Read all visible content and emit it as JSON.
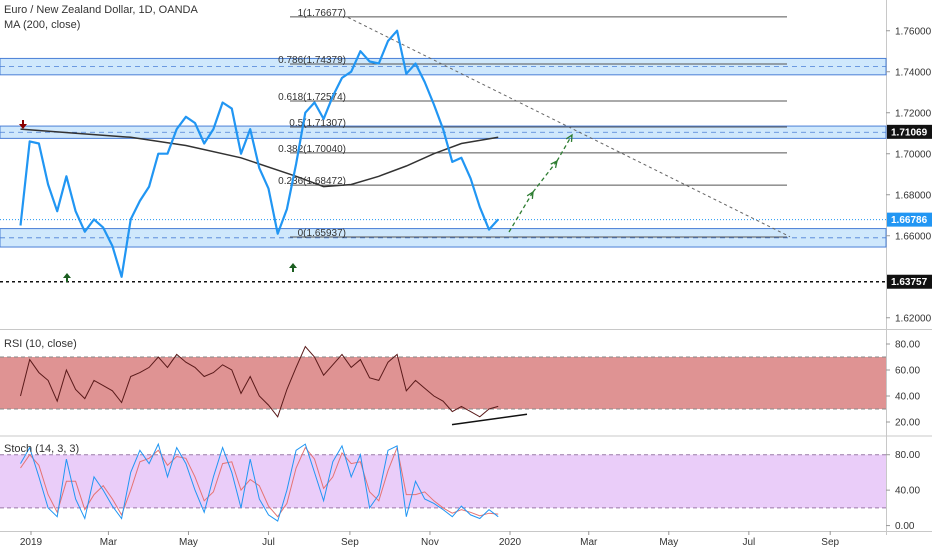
{
  "header": {
    "symbol": "Euro / New Zealand Dollar, 1D, OANDA",
    "ma_label": "MA (200, close)",
    "rsi_label": "RSI (10, close)",
    "stoch_label": "Stoch (14, 3, 3)"
  },
  "colors": {
    "price": "#2196f3",
    "ma": "#333333",
    "zone": "#bbdefb",
    "rsi_band": "#d98080",
    "stoch_band": "#e8c8f8",
    "up_arrow": "#1b5e20",
    "down_arrow": "#8b0000",
    "last_tag": "#2196f3",
    "support_tag": "#111111",
    "ma_tag": "#111111"
  },
  "chart_data": [
    {
      "type": "line",
      "panel": "price",
      "ylim": [
        1.615,
        1.775
      ],
      "yticks": [
        "1.76000",
        "1.74000",
        "1.72000",
        "1.70000",
        "1.68000",
        "1.66000",
        "1.62000"
      ],
      "ytick_values": [
        1.76,
        1.74,
        1.72,
        1.7,
        1.68,
        1.66,
        1.62
      ],
      "x_labels": [
        "2019",
        "Mar",
        "May",
        "Jul",
        "Sep",
        "Nov",
        "2020",
        "Mar",
        "May",
        "Jul",
        "Sep"
      ],
      "series": [
        {
          "x": [
            "2018-12-24",
            "2018-12-31",
            "2019-01-07",
            "2019-01-14",
            "2019-01-21",
            "2019-01-28",
            "2019-02-04",
            "2019-02-11",
            "2019-02-18",
            "2019-02-25",
            "2019-03-04",
            "2019-03-11",
            "2019-03-18",
            "2019-03-25",
            "2019-04-01",
            "2019-04-08",
            "2019-04-15",
            "2019-04-22",
            "2019-04-29",
            "2019-05-06",
            "2019-05-13",
            "2019-05-20",
            "2019-05-27",
            "2019-06-03",
            "2019-06-10",
            "2019-06-17",
            "2019-06-24",
            "2019-07-01",
            "2019-07-08",
            "2019-07-15",
            "2019-07-22",
            "2019-07-29",
            "2019-08-05",
            "2019-08-12",
            "2019-08-19",
            "2019-08-26",
            "2019-09-02",
            "2019-09-09",
            "2019-09-16",
            "2019-09-23",
            "2019-09-30",
            "2019-10-07",
            "2019-10-14",
            "2019-10-21",
            "2019-10-28",
            "2019-11-04",
            "2019-11-11",
            "2019-11-18",
            "2019-11-25",
            "2019-12-02",
            "2019-12-09",
            "2019-12-16",
            "2019-12-23"
          ],
          "values": [
            1.665,
            1.706,
            1.705,
            1.685,
            1.672,
            1.689,
            1.672,
            1.662,
            1.668,
            1.664,
            1.655,
            1.64,
            1.668,
            1.677,
            1.684,
            1.7,
            1.7,
            1.712,
            1.718,
            1.715,
            1.705,
            1.712,
            1.725,
            1.722,
            1.7,
            1.712,
            1.693,
            1.683,
            1.661,
            1.673,
            1.695,
            1.72,
            1.725,
            1.717,
            1.728,
            1.737,
            1.74,
            1.75,
            1.745,
            1.744,
            1.755,
            1.76,
            1.739,
            1.744,
            1.735,
            1.724,
            1.712,
            1.696,
            1.698,
            1.688,
            1.674,
            1.663,
            1.668
          ]
        },
        {
          "name": "MA (200, close)",
          "x": [
            "2018-12-24",
            "2019-02-04",
            "2019-03-18",
            "2019-04-29",
            "2019-06-10",
            "2019-07-22",
            "2019-08-12",
            "2019-09-02",
            "2019-09-23",
            "2019-10-14",
            "2019-11-04",
            "2019-11-25",
            "2019-12-23"
          ],
          "values": [
            1.712,
            1.71,
            1.708,
            1.704,
            1.698,
            1.689,
            1.684,
            1.685,
            1.689,
            1.694,
            1.7,
            1.705,
            1.708
          ]
        }
      ],
      "last_price": "1.66786",
      "last_value": 1.66786,
      "support_level": "1.63757",
      "support_value": 1.63757,
      "ma_level": "1.71069",
      "ma_value": 1.71069,
      "fib_levels": [
        {
          "label": "1(1.76677)",
          "value": 1.76677
        },
        {
          "label": "0.786(1.74379)",
          "value": 1.74379
        },
        {
          "label": "0.618(1.72574)",
          "value": 1.72574
        },
        {
          "label": "0.5(1.71307)",
          "value": 1.71307
        },
        {
          "label": "0.382(1.70040)",
          "value": 1.7004
        },
        {
          "label": "0.236(1.68472)",
          "value": 1.68472
        },
        {
          "label": "0(1.65937)",
          "value": 1.65937
        }
      ],
      "zones": [
        {
          "from": 1.7385,
          "to": 1.7465
        },
        {
          "from": 1.7075,
          "to": 1.7135
        },
        {
          "from": 1.6545,
          "to": 1.6635
        }
      ]
    },
    {
      "type": "line",
      "panel": "rsi",
      "ylim": [
        10,
        90
      ],
      "yticks": [
        "80.00",
        "60.00",
        "40.00",
        "20.00"
      ],
      "ytick_values": [
        80,
        60,
        40,
        20
      ],
      "band": [
        30,
        70
      ],
      "series": [
        {
          "name": "RSI (10, close)",
          "x": [
            "2018-12-24",
            "2018-12-31",
            "2019-01-07",
            "2019-01-14",
            "2019-01-21",
            "2019-01-28",
            "2019-02-04",
            "2019-02-11",
            "2019-02-18",
            "2019-02-25",
            "2019-03-04",
            "2019-03-11",
            "2019-03-18",
            "2019-03-25",
            "2019-04-01",
            "2019-04-08",
            "2019-04-15",
            "2019-04-22",
            "2019-04-29",
            "2019-05-06",
            "2019-05-13",
            "2019-05-20",
            "2019-05-27",
            "2019-06-03",
            "2019-06-10",
            "2019-06-17",
            "2019-06-24",
            "2019-07-01",
            "2019-07-08",
            "2019-07-15",
            "2019-07-22",
            "2019-07-29",
            "2019-08-05",
            "2019-08-12",
            "2019-08-19",
            "2019-08-26",
            "2019-09-02",
            "2019-09-09",
            "2019-09-16",
            "2019-09-23",
            "2019-09-30",
            "2019-10-07",
            "2019-10-14",
            "2019-10-21",
            "2019-10-28",
            "2019-11-04",
            "2019-11-11",
            "2019-11-18",
            "2019-11-25",
            "2019-12-02",
            "2019-12-09",
            "2019-12-16",
            "2019-12-23"
          ],
          "values": [
            40,
            68,
            58,
            52,
            36,
            60,
            45,
            38,
            52,
            48,
            44,
            35,
            55,
            58,
            62,
            70,
            62,
            72,
            66,
            62,
            55,
            58,
            64,
            60,
            42,
            55,
            40,
            33,
            24,
            45,
            62,
            78,
            70,
            56,
            64,
            72,
            62,
            68,
            54,
            52,
            66,
            72,
            44,
            52,
            46,
            40,
            36,
            28,
            32,
            28,
            24,
            30,
            32
          ]
        }
      ]
    },
    {
      "type": "line",
      "panel": "stoch",
      "ylim": [
        -5,
        100
      ],
      "yticks": [
        "80.00",
        "40.00",
        "0.00"
      ],
      "ytick_values": [
        80,
        40,
        0
      ],
      "band": [
        20,
        80
      ],
      "series": [
        {
          "name": "%K",
          "x": [
            "2018-12-24",
            "2018-12-31",
            "2019-01-07",
            "2019-01-14",
            "2019-01-21",
            "2019-01-28",
            "2019-02-04",
            "2019-02-11",
            "2019-02-18",
            "2019-02-25",
            "2019-03-04",
            "2019-03-11",
            "2019-03-18",
            "2019-03-25",
            "2019-04-01",
            "2019-04-08",
            "2019-04-15",
            "2019-04-22",
            "2019-04-29",
            "2019-05-06",
            "2019-05-13",
            "2019-05-20",
            "2019-05-27",
            "2019-06-03",
            "2019-06-10",
            "2019-06-17",
            "2019-06-24",
            "2019-07-01",
            "2019-07-08",
            "2019-07-15",
            "2019-07-22",
            "2019-07-29",
            "2019-08-05",
            "2019-08-12",
            "2019-08-19",
            "2019-08-26",
            "2019-09-02",
            "2019-09-09",
            "2019-09-16",
            "2019-09-23",
            "2019-09-30",
            "2019-10-07",
            "2019-10-14",
            "2019-10-21",
            "2019-10-28",
            "2019-11-04",
            "2019-11-11",
            "2019-11-18",
            "2019-11-25",
            "2019-12-02",
            "2019-12-09",
            "2019-12-16",
            "2019-12-23"
          ],
          "values": [
            70,
            88,
            55,
            20,
            10,
            75,
            30,
            8,
            55,
            40,
            22,
            8,
            60,
            85,
            70,
            92,
            55,
            88,
            70,
            40,
            15,
            55,
            88,
            60,
            20,
            75,
            30,
            12,
            5,
            40,
            85,
            92,
            60,
            28,
            72,
            90,
            55,
            80,
            20,
            35,
            85,
            90,
            10,
            50,
            30,
            25,
            18,
            10,
            22,
            12,
            8,
            18,
            10
          ]
        },
        {
          "name": "%D",
          "x": [
            "2018-12-24",
            "2018-12-31",
            "2019-01-07",
            "2019-01-14",
            "2019-01-21",
            "2019-01-28",
            "2019-02-04",
            "2019-02-11",
            "2019-02-18",
            "2019-02-25",
            "2019-03-04",
            "2019-03-11",
            "2019-03-18",
            "2019-03-25",
            "2019-04-01",
            "2019-04-08",
            "2019-04-15",
            "2019-04-22",
            "2019-04-29",
            "2019-05-06",
            "2019-05-13",
            "2019-05-20",
            "2019-05-27",
            "2019-06-03",
            "2019-06-10",
            "2019-06-17",
            "2019-06-24",
            "2019-07-01",
            "2019-07-08",
            "2019-07-15",
            "2019-07-22",
            "2019-07-29",
            "2019-08-05",
            "2019-08-12",
            "2019-08-19",
            "2019-08-26",
            "2019-09-02",
            "2019-09-09",
            "2019-09-16",
            "2019-09-23",
            "2019-09-30",
            "2019-10-07",
            "2019-10-14",
            "2019-10-21",
            "2019-10-28",
            "2019-11-04",
            "2019-11-11",
            "2019-11-18",
            "2019-11-25",
            "2019-12-02",
            "2019-12-09",
            "2019-12-16",
            "2019-12-23"
          ],
          "values": [
            65,
            80,
            68,
            35,
            15,
            50,
            50,
            18,
            35,
            45,
            30,
            12,
            40,
            72,
            76,
            85,
            68,
            78,
            76,
            55,
            28,
            38,
            70,
            72,
            40,
            52,
            45,
            22,
            10,
            25,
            65,
            88,
            75,
            42,
            55,
            82,
            70,
            72,
            38,
            28,
            62,
            88,
            35,
            35,
            38,
            28,
            20,
            14,
            18,
            15,
            11,
            14,
            13
          ]
        }
      ]
    }
  ]
}
